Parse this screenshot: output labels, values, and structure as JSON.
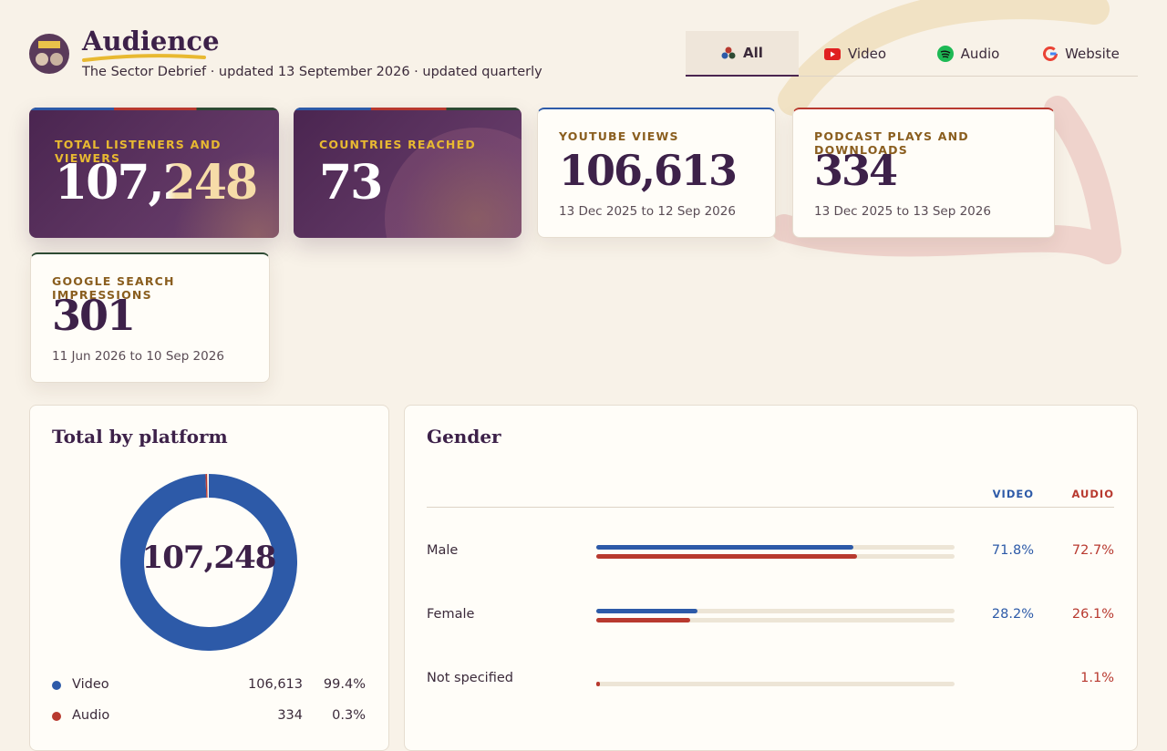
{
  "header": {
    "title": "Audience",
    "subtitle": "The Sector Debrief · updated 13 September 2026 · updated quarterly"
  },
  "tabs": [
    "All",
    "Video",
    "Audio",
    "Website"
  ],
  "cards": [
    {
      "label": "TOTAL LISTENERS AND VIEWERS",
      "value": "107,248"
    },
    {
      "label": "COUNTRIES REACHED",
      "value": "73"
    },
    {
      "label": "YOUTUBE VIEWS",
      "value": "106,613",
      "range": "13 Dec 2025 to 12 Sep 2026"
    },
    {
      "label": "PODCAST PLAYS AND DOWNLOADS",
      "value": "334",
      "range": "13 Dec 2025 to 13 Sep 2026"
    },
    {
      "label": "GOOGLE SEARCH IMPRESSIONS",
      "value": "301",
      "range": "11 Jun 2026 to 10 Sep 2026"
    }
  ],
  "platform": {
    "title": "Total by platform",
    "items": [
      {
        "name": "Video",
        "color": "#2d5aa8",
        "value": 106613,
        "value_label": "106,613",
        "share": 99.4,
        "share_label": "99.4%"
      },
      {
        "name": "Audio",
        "color": "#b8392f",
        "value": 334,
        "value_label": "334",
        "share": 0.3,
        "share_label": "0.3%"
      }
    ]
  },
  "gender": {
    "title": "Gender",
    "columns": [
      "VIDEO",
      "AUDIO"
    ],
    "rows": [
      {
        "name": "Male",
        "video": 71.8,
        "video_label": "71.8%",
        "audio": 72.7,
        "audio_label": "72.7%"
      },
      {
        "name": "Female",
        "video": 28.2,
        "video_label": "28.2%",
        "audio": 26.1,
        "audio_label": "26.1%"
      },
      {
        "name": "Not specified",
        "video": null,
        "video_label": null,
        "audio": 1.1,
        "audio_label": "1.1%"
      }
    ]
  }
}
